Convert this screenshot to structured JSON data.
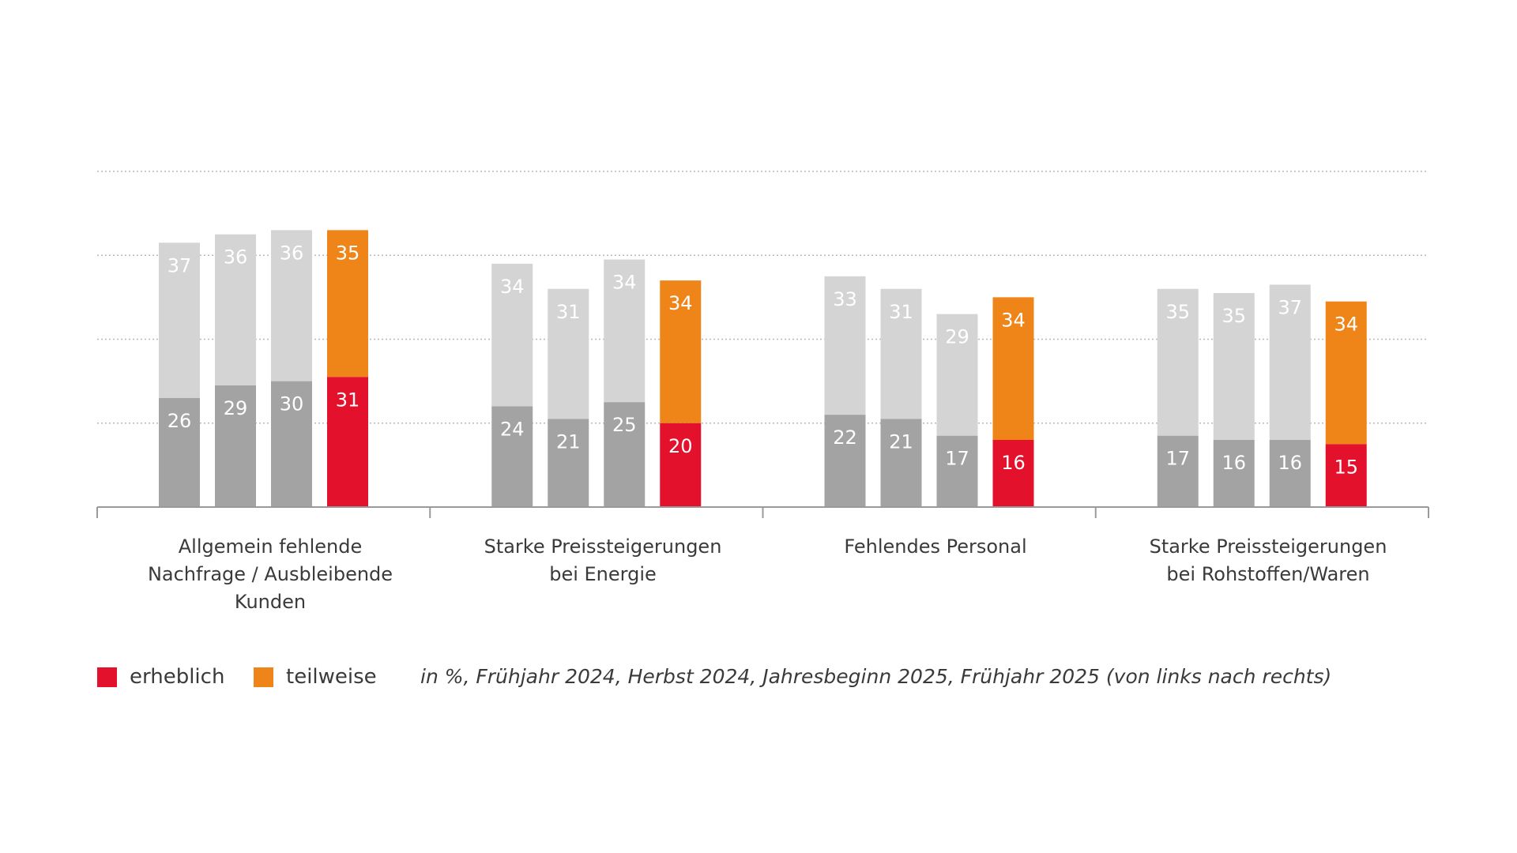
{
  "chart_data": {
    "type": "bar",
    "stacked": true,
    "categories": [
      "Allgemein fehlende Nachfrage / Ausbleibende Kunden",
      "Starke Preissteigerungen bei Energie",
      "Fehlendes Personal",
      "Starke Preissteigerungen bei Rohstoffen/Waren"
    ],
    "category_label_lines": [
      [
        "Allgemein fehlende",
        "Nachfrage / Ausbleibende",
        "Kunden"
      ],
      [
        "Starke Preissteigerungen",
        "bei Energie"
      ],
      [
        "Fehlendes Personal"
      ],
      [
        "Starke Preissteigerungen",
        "bei Rohstoffen/Waren"
      ]
    ],
    "periods": [
      "Frühjahr 2024",
      "Herbst 2024",
      "Jahresbeginn 2025",
      "Frühjahr 2025"
    ],
    "series": [
      {
        "name": "erheblich",
        "values": [
          [
            26,
            29,
            30,
            31
          ],
          [
            24,
            21,
            25,
            20
          ],
          [
            22,
            21,
            17,
            16
          ],
          [
            17,
            16,
            16,
            15
          ]
        ]
      },
      {
        "name": "teilweise",
        "values": [
          [
            37,
            36,
            36,
            35
          ],
          [
            34,
            31,
            34,
            34
          ],
          [
            33,
            31,
            29,
            34
          ],
          [
            35,
            35,
            37,
            34
          ]
        ]
      }
    ],
    "ylim": [
      0,
      80
    ],
    "grid": true,
    "gridlines": [
      20,
      40,
      60,
      80
    ],
    "legend": [
      {
        "label": "erheblich",
        "color": "#e4112d"
      },
      {
        "label": "teilweise",
        "color": "#ef8519"
      }
    ],
    "note": "in %, Frühjahr 2024, Herbst 2024, Jahresbeginn 2025, Frühjahr 2025 (von links nach rechts)",
    "colors": {
      "past_erheblich": "#a3a3a3",
      "past_teilweise": "#d4d4d4",
      "current_erheblich": "#e4112d",
      "current_teilweise": "#ef8519",
      "axis": "#9a9a9a",
      "grid": "#b8b8b8",
      "text": "#3a3a3a"
    }
  }
}
